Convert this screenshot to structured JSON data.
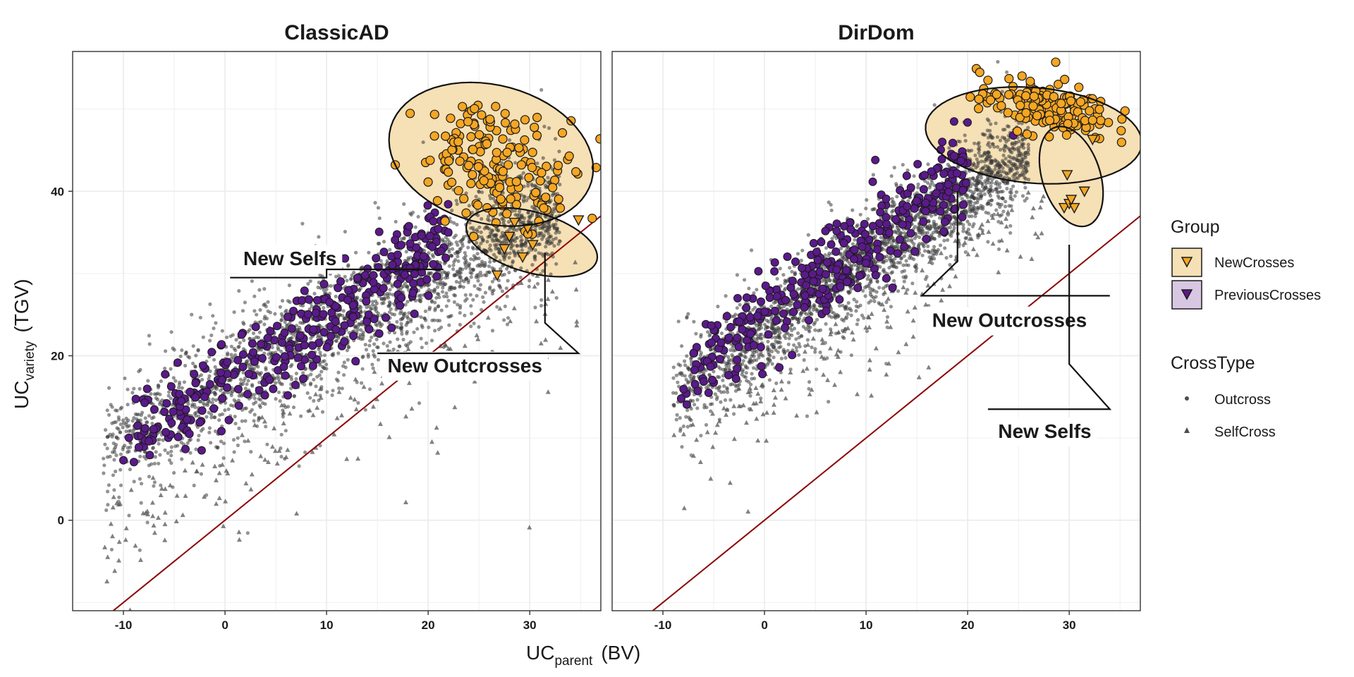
{
  "chart_data": {
    "type": "scatter",
    "xlabel": {
      "main": "UC",
      "sub": "parent",
      "unit": "(BV)"
    },
    "ylabel": {
      "main": "UC",
      "sub": "variety",
      "unit": "(TGV)"
    },
    "xlim": [
      -15,
      37
    ],
    "ylim": [
      -11,
      57
    ],
    "x_ticks": [
      -10,
      0,
      10,
      20,
      30
    ],
    "y_ticks": [
      0,
      20,
      40
    ],
    "grid": true,
    "reference_line": {
      "slope": 1,
      "intercept": 0,
      "color": "#8b0000"
    },
    "legend": {
      "position": "right",
      "group_title": "Group",
      "groups": [
        {
          "name": "NewCrosses",
          "fill": "#f5a623",
          "box": "#f6e0b5"
        },
        {
          "name": "PreviousCrosses",
          "fill": "#5a1a8a",
          "box": "#d8c7e2"
        }
      ],
      "crosstype_title": "CrossType",
      "crosstypes": [
        {
          "name": "Outcross",
          "shape": "circle"
        },
        {
          "name": "SelfCross",
          "shape": "triangle"
        }
      ]
    },
    "panels": [
      {
        "title": "ClassicAD",
        "cloud": {
          "x_start": -12,
          "x_end": 33,
          "slope": 0.65,
          "intercept": 16.5,
          "spread": 4
        },
        "new_outcross_cluster": {
          "x_center": 27,
          "y_center": 43.5,
          "x_spread": 4,
          "y_spread": 3.5,
          "count": 170
        },
        "new_self_points": [
          [
            27.5,
            33
          ],
          [
            28,
            34.5
          ],
          [
            29.3,
            32
          ],
          [
            30.3,
            33.5
          ],
          [
            29.8,
            35.5
          ],
          [
            34.8,
            36.5
          ],
          [
            26.8,
            29.8
          ],
          [
            28.5,
            36.2
          ]
        ],
        "previous_cluster": {
          "x_start": -10,
          "x_end": 22,
          "slope": 0.75,
          "intercept": 17,
          "count": 330
        },
        "previous_extra": [
          [
            -10,
            7.3
          ],
          [
            -7.5,
            9.6
          ],
          [
            -4.3,
            14.5
          ],
          [
            -2.3,
            8.5
          ],
          [
            -3.5,
            10.5
          ]
        ],
        "ellipses": [
          {
            "cx": 26.2,
            "cy": 44.5,
            "rx": 10.5,
            "ry": 8.2,
            "angle": -0.48
          },
          {
            "cx": 30.2,
            "cy": 33.8,
            "rx": 6.8,
            "ry": 3.6,
            "angle": -0.38
          }
        ],
        "labels": [
          {
            "text": "New Selfs",
            "x": 1.8,
            "y": 31,
            "line": [
              [
                0.5,
                29.5
              ],
              [
                10,
                29.5
              ],
              [
                10,
                30.5
              ],
              [
                21.5,
                30.5
              ]
            ]
          },
          {
            "text": "New Outcrosses",
            "x": 16,
            "y": 18,
            "line": [
              [
                15,
                20.3
              ],
              [
                34.8,
                20.3
              ],
              [
                31.5,
                24
              ],
              [
                31.5,
                32.5
              ]
            ]
          }
        ]
      },
      {
        "title": "DirDom",
        "cloud": {
          "x_start": -9,
          "x_end": 26,
          "slope": 0.85,
          "intercept": 23,
          "spread": 3.2
        },
        "new_outcross_cluster": {
          "x_center": 27.5,
          "y_center": 50.2,
          "x_spread": 3.2,
          "y_spread": 1.6,
          "count": 170
        },
        "new_self_points": [
          [
            29.5,
            38
          ],
          [
            30,
            38.5
          ],
          [
            30.5,
            38
          ],
          [
            29.8,
            42
          ],
          [
            31.5,
            40
          ],
          [
            32.3,
            46.3
          ],
          [
            30.2,
            39
          ]
        ],
        "previous_cluster": {
          "x_start": -8,
          "x_end": 20,
          "slope": 0.92,
          "intercept": 24.5,
          "count": 330
        },
        "previous_extra": [
          [
            -8.2,
            14.8
          ],
          [
            -5.5,
            15.5
          ],
          [
            -2.8,
            17.2
          ],
          [
            -2.7,
            19.5
          ],
          [
            -2.2,
            23.2
          ],
          [
            -3.5,
            22.2
          ],
          [
            17.5,
            46
          ],
          [
            24.5,
            46.8
          ]
        ],
        "ellipses": [
          {
            "cx": 26.5,
            "cy": 46.8,
            "rx": 10.7,
            "ry": 5.8,
            "angle": -0.12
          },
          {
            "cx": 30.2,
            "cy": 41.8,
            "rx": 6.2,
            "ry": 2.9,
            "angle": -1.35
          }
        ],
        "labels": [
          {
            "text": "New Outcrosses",
            "x": 16.5,
            "y": 23.5,
            "line": [
              [
                34,
                27.3
              ],
              [
                15.5,
                27.3
              ],
              [
                19,
                31.5
              ],
              [
                19,
                40
              ]
            ]
          },
          {
            "text": "New Selfs",
            "x": 23,
            "y": 10,
            "line": [
              [
                22,
                13.5
              ],
              [
                34,
                13.5
              ],
              [
                30,
                19
              ],
              [
                30,
                33.5
              ]
            ]
          }
        ]
      }
    ]
  }
}
